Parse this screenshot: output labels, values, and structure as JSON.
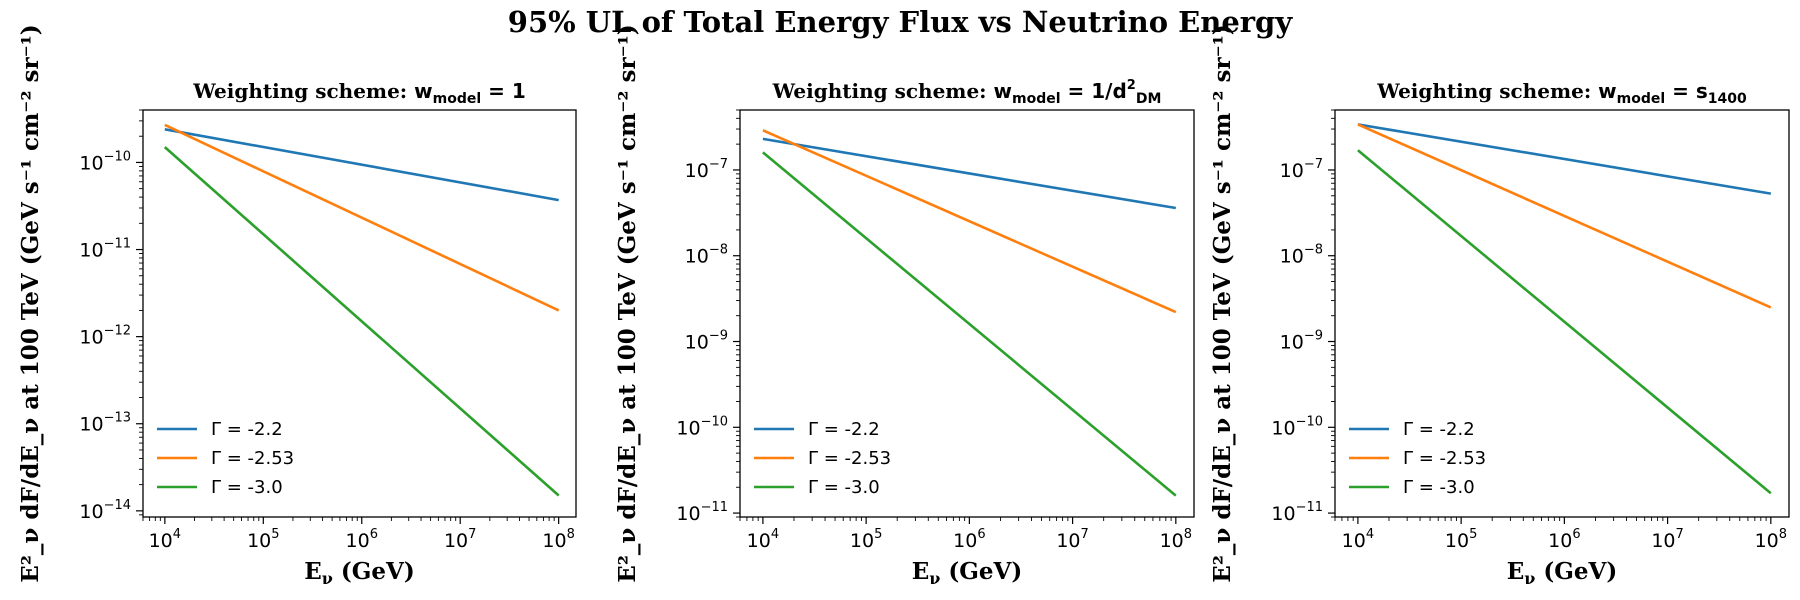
{
  "figure": {
    "title": "95% UL of Total Energy Flux vs Neutrino Energy"
  },
  "chart_data": [
    {
      "type": "line",
      "title_prefix": "Weighting scheme:",
      "title_math": "w_model = 1",
      "xlabel": "E_ν (GeV)",
      "ylabel": "E²_ν dF/dE_ν at 100 TeV (GeV s⁻¹ cm⁻² sr⁻¹)",
      "xscale": "log",
      "yscale": "log",
      "xlim": [
        6000.0,
        150000000.0
      ],
      "ylim": [
        8.5e-15,
        4e-10
      ],
      "xticks": [
        10000.0,
        100000.0,
        1000000.0,
        10000000.0,
        100000000.0
      ],
      "yticks": [
        1e-14,
        1e-13,
        1e-12,
        1e-11,
        1e-10
      ],
      "legend_position": "lower-left",
      "series": [
        {
          "name": "Γ = -2.2",
          "color": "#1f77b4",
          "x": [
            10000.0,
            100000000.0
          ],
          "y": [
            2.4e-10,
            3.7e-11
          ]
        },
        {
          "name": "Γ = -2.53",
          "color": "#ff7f0e",
          "x": [
            10000.0,
            100000000.0
          ],
          "y": [
            2.7e-10,
            2e-12
          ]
        },
        {
          "name": "Γ = -3.0",
          "color": "#2ca02c",
          "x": [
            10000.0,
            100000000.0
          ],
          "y": [
            1.5e-10,
            1.5e-14
          ]
        }
      ]
    },
    {
      "type": "line",
      "title_prefix": "Weighting scheme:",
      "title_math": "w_model = 1 / d²_DM",
      "xlabel": "E_ν (GeV)",
      "ylabel": "E²_ν dF/dE_ν at 100 TeV (GeV s⁻¹ cm⁻² sr⁻¹)",
      "xscale": "log",
      "yscale": "log",
      "xlim": [
        6000.0,
        150000000.0
      ],
      "ylim": [
        9e-12,
        5e-07
      ],
      "xticks": [
        10000.0,
        100000.0,
        1000000.0,
        10000000.0,
        100000000.0
      ],
      "yticks": [
        1e-11,
        1e-10,
        1e-09,
        1e-08,
        1e-07
      ],
      "legend_position": "lower-left",
      "series": [
        {
          "name": "Γ = -2.2",
          "color": "#1f77b4",
          "x": [
            10000.0,
            100000000.0
          ],
          "y": [
            2.3e-07,
            3.6e-08
          ]
        },
        {
          "name": "Γ = -2.53",
          "color": "#ff7f0e",
          "x": [
            10000.0,
            100000000.0
          ],
          "y": [
            2.9e-07,
            2.2e-09
          ]
        },
        {
          "name": "Γ = -3.0",
          "color": "#2ca02c",
          "x": [
            10000.0,
            100000000.0
          ],
          "y": [
            1.6e-07,
            1.6e-11
          ]
        }
      ]
    },
    {
      "type": "line",
      "title_prefix": "Weighting scheme:",
      "title_math": "w_model = s_1400",
      "xlabel": "E_ν (GeV)",
      "ylabel": "E²_ν dF/dE_ν at 100 TeV (GeV s⁻¹ cm⁻² sr⁻¹)",
      "xscale": "log",
      "yscale": "log",
      "xlim": [
        6000.0,
        150000000.0
      ],
      "ylim": [
        9e-12,
        5e-07
      ],
      "xticks": [
        10000.0,
        100000.0,
        1000000.0,
        10000000.0,
        100000000.0
      ],
      "yticks": [
        1e-11,
        1e-10,
        1e-09,
        1e-08,
        1e-07
      ],
      "legend_position": "lower-left",
      "series": [
        {
          "name": "Γ = -2.2",
          "color": "#1f77b4",
          "x": [
            10000.0,
            100000000.0
          ],
          "y": [
            3.4e-07,
            5.3e-08
          ]
        },
        {
          "name": "Γ = -2.53",
          "color": "#ff7f0e",
          "x": [
            10000.0,
            100000000.0
          ],
          "y": [
            3.4e-07,
            2.5e-09
          ]
        },
        {
          "name": "Γ = -3.0",
          "color": "#2ca02c",
          "x": [
            10000.0,
            100000000.0
          ],
          "y": [
            1.7e-07,
            1.7e-11
          ]
        }
      ]
    }
  ]
}
